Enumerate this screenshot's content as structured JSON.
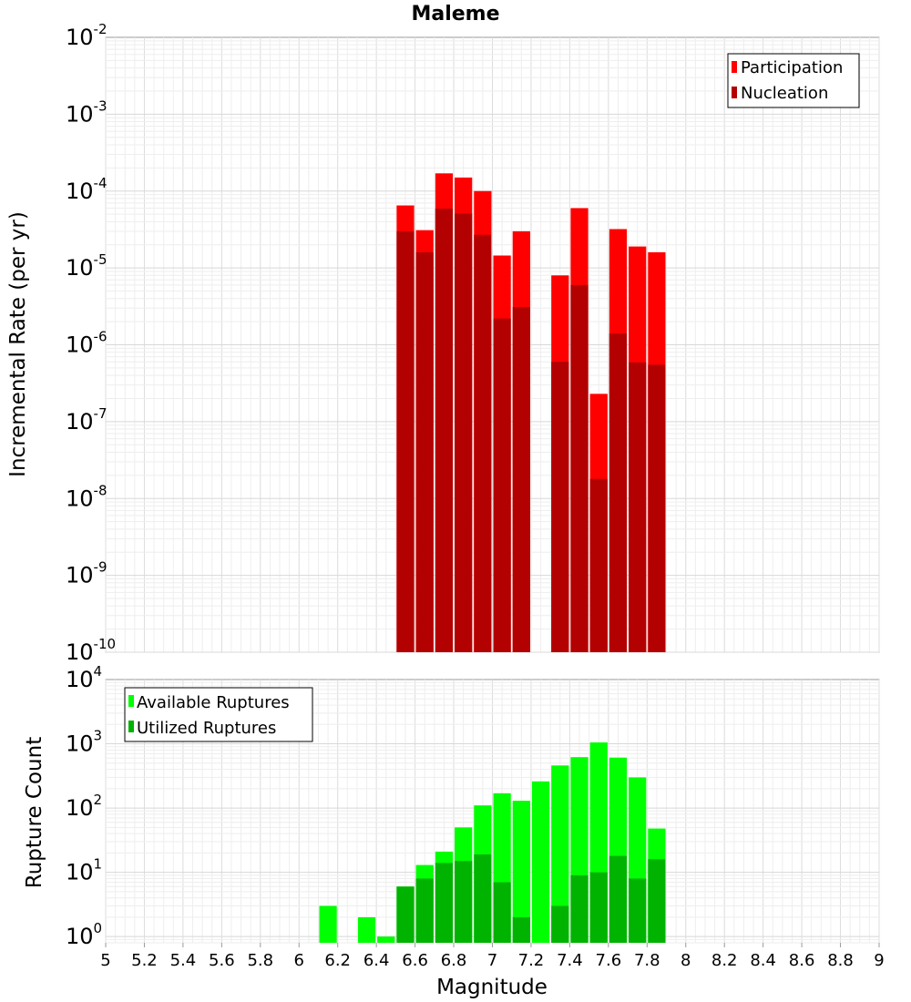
{
  "title": "Maleme",
  "x_axis": {
    "label": "Magnitude",
    "ticks": [
      "5",
      "5.2",
      "5.4",
      "5.6",
      "5.8",
      "6",
      "6.2",
      "6.4",
      "6.6",
      "6.8",
      "7",
      "7.2",
      "7.4",
      "7.6",
      "7.8",
      "8",
      "8.2",
      "8.4",
      "8.6",
      "8.8",
      "9"
    ]
  },
  "colors": {
    "participation": "#ff0000",
    "nucleation": "#b30000",
    "available": "#00ff00",
    "utilized": "#00b300"
  },
  "chart_data": [
    {
      "type": "bar",
      "name": "rate",
      "ylabel": "Incremental Rate (per yr)",
      "xlabel": "",
      "yscale": "log",
      "xlim": [
        5,
        9
      ],
      "ylim": [
        1e-10,
        0.01
      ],
      "y_ticks": [
        {
          "base": "10",
          "exp": "-10",
          "value": 1e-10
        },
        {
          "base": "10",
          "exp": "-9",
          "value": 1e-09
        },
        {
          "base": "10",
          "exp": "-8",
          "value": 1e-08
        },
        {
          "base": "10",
          "exp": "-7",
          "value": 1e-07
        },
        {
          "base": "10",
          "exp": "-6",
          "value": 1e-06
        },
        {
          "base": "10",
          "exp": "-5",
          "value": 1e-05
        },
        {
          "base": "10",
          "exp": "-4",
          "value": 0.0001
        },
        {
          "base": "10",
          "exp": "-3",
          "value": 0.001
        },
        {
          "base": "10",
          "exp": "-2",
          "value": 0.01
        }
      ],
      "legend_position": "top-right",
      "bar_width": 0.1,
      "series": [
        {
          "name": "Participation",
          "color_key": "participation",
          "x": [
            6.55,
            6.65,
            6.75,
            6.85,
            6.95,
            7.05,
            7.15,
            7.35,
            7.45,
            7.55,
            7.65,
            7.75,
            7.85
          ],
          "values": [
            6.5e-05,
            3.1e-05,
            0.00017,
            0.00015,
            0.0001,
            1.45e-05,
            3e-05,
            8e-06,
            6e-05,
            2.3e-07,
            3.2e-05,
            1.9e-05,
            1.6e-05
          ]
        },
        {
          "name": "Nucleation",
          "color_key": "nucleation",
          "x": [
            6.55,
            6.65,
            6.75,
            6.85,
            6.95,
            7.05,
            7.15,
            7.35,
            7.45,
            7.55,
            7.65,
            7.75,
            7.85
          ],
          "values": [
            3e-05,
            1.6e-05,
            5.9e-05,
            5.1e-05,
            2.7e-05,
            2.2e-06,
            3.1e-06,
            6e-07,
            6e-06,
            1.8e-08,
            1.4e-06,
            5.9e-07,
            5.5e-07
          ]
        }
      ]
    },
    {
      "type": "bar",
      "name": "count",
      "ylabel": "Rupture Count",
      "xlabel": "Magnitude",
      "yscale": "log",
      "xlim": [
        5,
        9
      ],
      "ylim": [
        0.8,
        10000.0
      ],
      "y_ticks": [
        {
          "base": "10",
          "exp": "0",
          "value": 1
        },
        {
          "base": "10",
          "exp": "1",
          "value": 10
        },
        {
          "base": "10",
          "exp": "2",
          "value": 100
        },
        {
          "base": "10",
          "exp": "3",
          "value": 1000
        },
        {
          "base": "10",
          "exp": "4",
          "value": 10000
        }
      ],
      "legend_position": "top-left",
      "bar_width": 0.1,
      "series": [
        {
          "name": "Available Ruptures",
          "color_key": "available",
          "x": [
            6.15,
            6.35,
            6.45,
            6.55,
            6.65,
            6.75,
            6.85,
            6.95,
            7.05,
            7.15,
            7.25,
            7.35,
            7.45,
            7.55,
            7.65,
            7.75,
            7.85
          ],
          "values": [
            3,
            2,
            1,
            6,
            13,
            21,
            50,
            110,
            170,
            130,
            260,
            460,
            620,
            1050,
            610,
            300,
            48
          ]
        },
        {
          "name": "Utilized Ruptures",
          "color_key": "utilized",
          "x": [
            6.55,
            6.65,
            6.75,
            6.85,
            6.95,
            7.05,
            7.15,
            7.35,
            7.45,
            7.55,
            7.65,
            7.75,
            7.85
          ],
          "values": [
            6,
            8,
            14,
            15,
            19,
            7,
            2,
            3,
            9,
            10,
            18,
            8,
            16
          ]
        }
      ]
    }
  ]
}
